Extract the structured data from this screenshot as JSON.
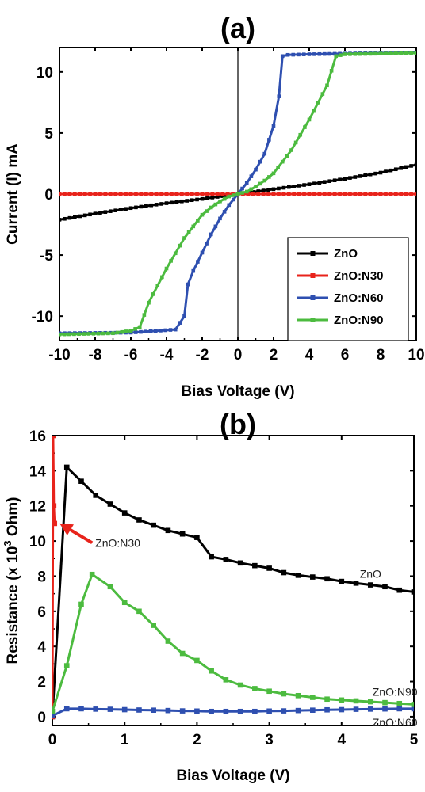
{
  "chart_data": [
    {
      "panel": "(a)",
      "type": "line",
      "xlabel": "Bias Voltage (V)",
      "ylabel": "Current (I) mA",
      "xlim": [
        -10,
        10
      ],
      "ylim": [
        -12,
        12
      ],
      "xticks": [
        -10,
        -8,
        -6,
        -4,
        -2,
        0,
        2,
        4,
        6,
        8,
        10
      ],
      "yticks": [
        -10,
        -5,
        0,
        5,
        10
      ],
      "xtick_labels": [
        "-10",
        "-8",
        "-6",
        "-4",
        "-2",
        "0",
        "2",
        "4",
        "6",
        "8",
        "10"
      ],
      "ytick_labels": [
        "-10",
        "-5",
        "0",
        "5",
        "10"
      ],
      "grid": false,
      "legend_position": "bottom-right",
      "series": [
        {
          "name": "ZnO",
          "color": "#000000",
          "x": [
            -10,
            -8,
            -6,
            -4,
            -2,
            0,
            2,
            4,
            6,
            8,
            10
          ],
          "y": [
            -2.1,
            -1.6,
            -1.15,
            -0.75,
            -0.4,
            0,
            0.4,
            0.8,
            1.25,
            1.75,
            2.4
          ]
        },
        {
          "name": "ZnO:N30",
          "color": "#e8231b",
          "x": [
            -10,
            -8,
            -6,
            -4,
            -2,
            0,
            2,
            4,
            6,
            8,
            10
          ],
          "y": [
            0,
            0,
            0,
            0,
            0,
            0,
            0,
            0,
            0,
            0,
            0
          ]
        },
        {
          "name": "ZnO:N60",
          "color": "#2e4fb0",
          "x": [
            -10,
            -6,
            -3.5,
            -3.0,
            -2.8,
            -2.5,
            -2.0,
            -1.5,
            -1.0,
            -0.5,
            0,
            0.5,
            1.0,
            1.5,
            2.0,
            2.3,
            2.5,
            2.8,
            4,
            6,
            8,
            10
          ],
          "y": [
            -11.4,
            -11.35,
            -11.1,
            -10.0,
            -7.4,
            -6.3,
            -4.8,
            -3.3,
            -2.0,
            -0.9,
            0,
            0.9,
            2.0,
            3.3,
            5.6,
            8.0,
            11.3,
            11.4,
            11.45,
            11.5,
            11.55,
            11.6
          ]
        },
        {
          "name": "ZnO:N90",
          "color": "#4cbb3f",
          "x": [
            -10,
            -7,
            -6,
            -5.5,
            -5,
            -4,
            -3,
            -2,
            -1.5,
            -1,
            -0.5,
            0,
            0.5,
            1,
            1.5,
            2,
            3,
            4,
            5,
            5.5,
            6,
            8,
            10
          ],
          "y": [
            -11.5,
            -11.4,
            -11.2,
            -10.9,
            -8.9,
            -6.1,
            -3.6,
            -1.7,
            -1.1,
            -0.6,
            -0.2,
            0,
            0.2,
            0.6,
            1.1,
            1.7,
            3.6,
            6.1,
            8.9,
            11.3,
            11.45,
            11.5,
            11.55
          ]
        }
      ]
    },
    {
      "panel": "(b)",
      "type": "line",
      "xlabel": "Bias Voltage (V)",
      "ylabel": "Resistance (x 10",
      "ylabel_superscript": "3",
      "ylabel_suffix": " Ohm)",
      "xlim": [
        0,
        5
      ],
      "ylim": [
        -0.5,
        16
      ],
      "xticks": [
        0,
        1,
        2,
        3,
        4,
        5
      ],
      "yticks": [
        0,
        2,
        4,
        6,
        8,
        10,
        12,
        14,
        16
      ],
      "xtick_labels": [
        "0",
        "1",
        "2",
        "3",
        "4",
        "5"
      ],
      "ytick_labels": [
        "0",
        "2",
        "4",
        "6",
        "8",
        "10",
        "12",
        "14",
        "16"
      ],
      "grid": false,
      "series": [
        {
          "name": "ZnO",
          "color": "#000000",
          "x": [
            0,
            0.2,
            0.4,
            0.6,
            0.8,
            1.0,
            1.2,
            1.4,
            1.6,
            1.8,
            2.0,
            2.2,
            2.4,
            2.6,
            2.8,
            3.0,
            3.2,
            3.4,
            3.6,
            3.8,
            4.0,
            4.2,
            4.4,
            4.6,
            4.8,
            5.0
          ],
          "y": [
            0,
            14.2,
            13.4,
            12.6,
            12.1,
            11.6,
            11.2,
            10.9,
            10.6,
            10.4,
            10.2,
            9.1,
            8.95,
            8.75,
            8.6,
            8.45,
            8.2,
            8.05,
            7.95,
            7.85,
            7.7,
            7.6,
            7.5,
            7.4,
            7.2,
            7.1
          ]
        },
        {
          "name": "ZnO:N30",
          "color": "#e8231b",
          "x": [
            0,
            0.01,
            0.02,
            0.03
          ],
          "y": [
            0,
            16,
            12,
            11
          ]
        },
        {
          "name": "ZnO:N60",
          "color": "#2e4fb0",
          "x": [
            0,
            0.2,
            0.4,
            0.6,
            0.8,
            1.0,
            1.2,
            1.4,
            1.6,
            1.8,
            2.0,
            2.2,
            2.4,
            2.6,
            2.8,
            3.0,
            3.2,
            3.4,
            3.6,
            3.8,
            4.0,
            4.2,
            4.4,
            4.6,
            4.8,
            5.0
          ],
          "y": [
            0.05,
            0.45,
            0.45,
            0.43,
            0.42,
            0.4,
            0.38,
            0.37,
            0.35,
            0.33,
            0.32,
            0.3,
            0.3,
            0.3,
            0.3,
            0.32,
            0.33,
            0.35,
            0.37,
            0.39,
            0.4,
            0.42,
            0.43,
            0.44,
            0.45,
            0.45
          ]
        },
        {
          "name": "ZnO:N90",
          "color": "#4cbb3f",
          "x": [
            0,
            0.2,
            0.4,
            0.55,
            0.8,
            1.0,
            1.2,
            1.4,
            1.6,
            1.8,
            2.0,
            2.2,
            2.4,
            2.6,
            2.8,
            3.0,
            3.2,
            3.4,
            3.6,
            3.8,
            4.0,
            4.2,
            4.4,
            4.6,
            4.8,
            5.0
          ],
          "y": [
            0.3,
            2.9,
            6.4,
            8.1,
            7.4,
            6.5,
            6.0,
            5.2,
            4.3,
            3.6,
            3.2,
            2.6,
            2.1,
            1.8,
            1.6,
            1.45,
            1.3,
            1.2,
            1.1,
            1.0,
            0.95,
            0.9,
            0.85,
            0.8,
            0.75,
            0.7
          ]
        }
      ],
      "annotations": [
        {
          "text": "ZnO:N30",
          "arrow_from": [
            0.55,
            9.9
          ],
          "arrow_to": [
            0.1,
            11.0
          ],
          "anchor": "start",
          "color": "#e8231b"
        },
        {
          "text": "ZnO",
          "at": [
            4.55,
            7.9
          ],
          "anchor": "end"
        },
        {
          "text": "ZnO:N90",
          "at": [
            5.05,
            1.2
          ],
          "anchor": "end"
        },
        {
          "text": "ZnO:N60",
          "at": [
            5.05,
            -0.55
          ],
          "anchor": "end"
        }
      ]
    }
  ]
}
